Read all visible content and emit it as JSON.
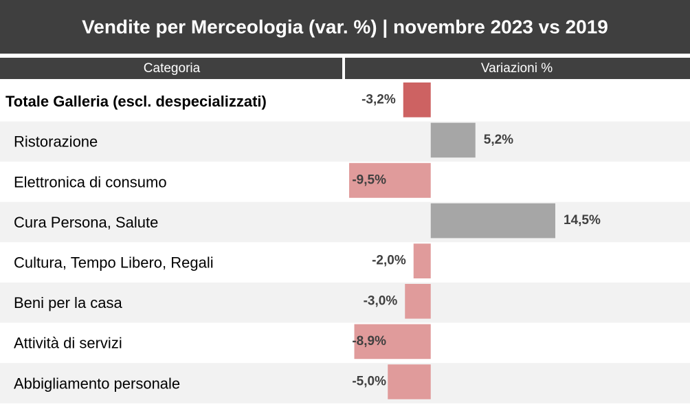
{
  "chart_data": {
    "type": "bar",
    "title": "Vendite per Merceologia (var. %) | novembre 2023 vs 2019",
    "column_headers": [
      "Categoria",
      "Variazioni %"
    ],
    "categories": [
      "Totale Galleria (escl. despecializzati)",
      "Ristorazione",
      "Elettronica di consumo",
      "Cura Persona, Salute",
      "Cultura, Tempo Libero, Regali",
      "Beni per la casa",
      "Attività di servizi",
      "Abbigliamento personale"
    ],
    "values": [
      -3.2,
      5.2,
      -9.5,
      14.5,
      -2.0,
      -3.0,
      -8.9,
      -5.0
    ],
    "value_labels": [
      "-3,2%",
      "5,2%",
      "-9,5%",
      "14,5%",
      "-2,0%",
      "-3,0%",
      "-8,9%",
      "-5,0%"
    ],
    "colors": [
      "#cd6262",
      "#a6a6a6",
      "#e09b9b",
      "#a6a6a6",
      "#e09b9b",
      "#e09b9b",
      "#e09b9b",
      "#e09b9b"
    ]
  }
}
